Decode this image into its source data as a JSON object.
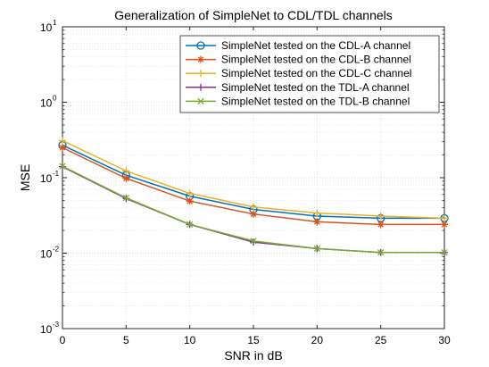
{
  "chart_data": {
    "type": "line",
    "title": "Generalization of SimpleNet to CDL/TDL channels",
    "xlabel": "SNR in dB",
    "ylabel": "MSE",
    "xlim": [
      0,
      30
    ],
    "ylim": [
      0.001,
      10
    ],
    "yscale": "log",
    "grid": true,
    "legend_position": "top-right",
    "x": [
      0,
      5,
      10,
      15,
      20,
      25,
      30
    ],
    "x_ticks": [
      "0",
      "5",
      "10",
      "15",
      "20",
      "25",
      "30"
    ],
    "y_ticks": [
      {
        "base": "10",
        "exp": "-3",
        "value": 0.001
      },
      {
        "base": "10",
        "exp": "-2",
        "value": 0.01
      },
      {
        "base": "10",
        "exp": "-1",
        "value": 0.1
      },
      {
        "base": "10",
        "exp": "0",
        "value": 1
      },
      {
        "base": "10",
        "exp": "1",
        "value": 10
      }
    ],
    "series": [
      {
        "name": "SimpleNet tested on the CDL-A channel",
        "color": "#0072BD",
        "marker": "circle",
        "values": [
          0.27,
          0.108,
          0.057,
          0.038,
          0.031,
          0.029,
          0.029
        ]
      },
      {
        "name": "SimpleNet tested on the CDL-B channel",
        "color": "#D95319",
        "marker": "asterisk",
        "values": [
          0.25,
          0.098,
          0.049,
          0.033,
          0.026,
          0.024,
          0.024
        ]
      },
      {
        "name": "SimpleNet tested on the CDL-C channel",
        "color": "#EDB120",
        "marker": "plus",
        "values": [
          0.31,
          0.123,
          0.062,
          0.041,
          0.034,
          0.031,
          0.029
        ]
      },
      {
        "name": "SimpleNet tested on the TDL-A channel",
        "color": "#7E2F8E",
        "marker": "plus",
        "values": [
          0.14,
          0.053,
          0.024,
          0.014,
          0.0115,
          0.0102,
          0.0102
        ]
      },
      {
        "name": "SimpleNet tested on the TDL-B channel",
        "color": "#77AC30",
        "marker": "x",
        "values": [
          0.142,
          0.054,
          0.024,
          0.0145,
          0.0115,
          0.0102,
          0.0102
        ]
      }
    ]
  }
}
